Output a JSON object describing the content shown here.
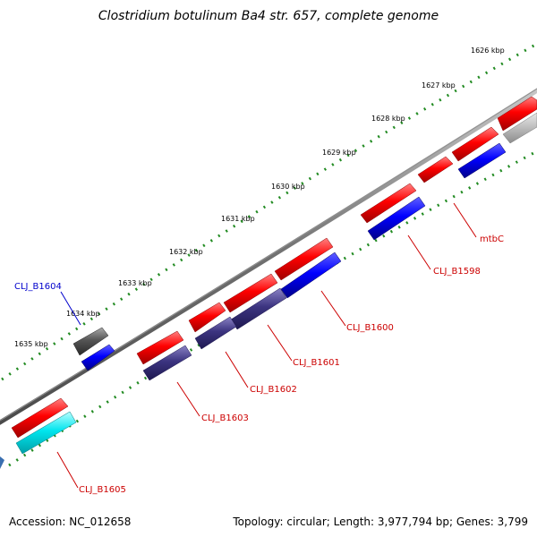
{
  "title": "Clostridium botulinum Ba4 str. 657, complete genome",
  "footer": {
    "accession": "Accession: NC_012658",
    "topology": "Topology: circular; Length: 3,977,794 bp; Genes: 3,799"
  },
  "ticks": [
    "1626 kbp",
    "1627 kbp",
    "1628 kbp",
    "1629 kbp",
    "1630 kbp",
    "1631 kbp",
    "1632 kbp",
    "1633 kbp",
    "1634 kbp",
    "1635 kbp"
  ],
  "genes": [
    "mtbC",
    "CLJ_B1598",
    "CLJ_B1600",
    "CLJ_B1601",
    "CLJ_B1602",
    "CLJ_B1603",
    "CLJ_B1604",
    "CLJ_B1605"
  ],
  "colors": {
    "forward_cds": "#ff0000",
    "reverse_cds": "#0000ff",
    "rna_gene": "#555555",
    "reverse_dark": "#3a327a",
    "cyan_feature": "#00e5ee",
    "backbone": "#7a7a7a",
    "tick_mark": "#228b22"
  }
}
